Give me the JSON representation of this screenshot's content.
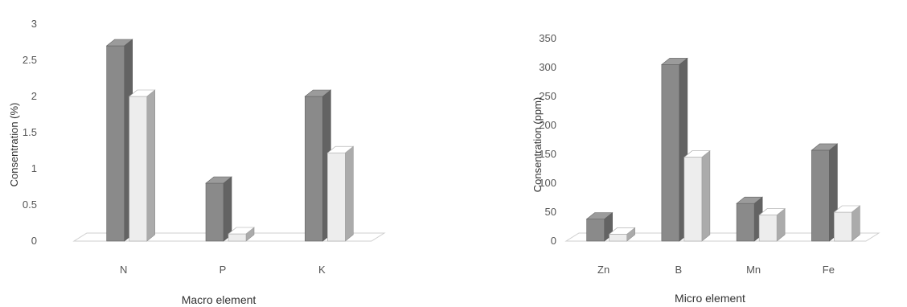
{
  "chart_data": [
    {
      "type": "bar",
      "title": "",
      "xlabel": "Macro element",
      "ylabel": "Consentration (%)",
      "categories": [
        "N",
        "P",
        "K"
      ],
      "series": [
        {
          "values": [
            2.7,
            0.8,
            2.0
          ],
          "color": "#8a8a8a"
        },
        {
          "values": [
            2.0,
            0.1,
            1.22
          ],
          "color": "#ededed"
        }
      ],
      "ylim": [
        0,
        3
      ],
      "yticks": [
        "0",
        "0.5",
        "1",
        "1.5",
        "2",
        "2.5",
        "3"
      ],
      "tick_values": [
        0,
        0.5,
        1,
        1.5,
        2,
        2.5,
        3
      ],
      "grid": false,
      "style": "3d-column"
    },
    {
      "type": "bar",
      "title": "",
      "xlabel": "Micro element",
      "ylabel": "Consentration (ppm)",
      "categories": [
        "Zn",
        "B",
        "Mn",
        "Fe"
      ],
      "series": [
        {
          "values": [
            38,
            305,
            65,
            157
          ],
          "color": "#8a8a8a"
        },
        {
          "values": [
            12,
            145,
            45,
            50
          ],
          "color": "#ededed"
        }
      ],
      "ylim": [
        0,
        350
      ],
      "yticks": [
        "0",
        "50",
        "100",
        "150",
        "200",
        "250",
        "300",
        "350"
      ],
      "tick_values": [
        0,
        50,
        100,
        150,
        200,
        250,
        300,
        350
      ],
      "grid": false,
      "style": "3d-column"
    }
  ]
}
